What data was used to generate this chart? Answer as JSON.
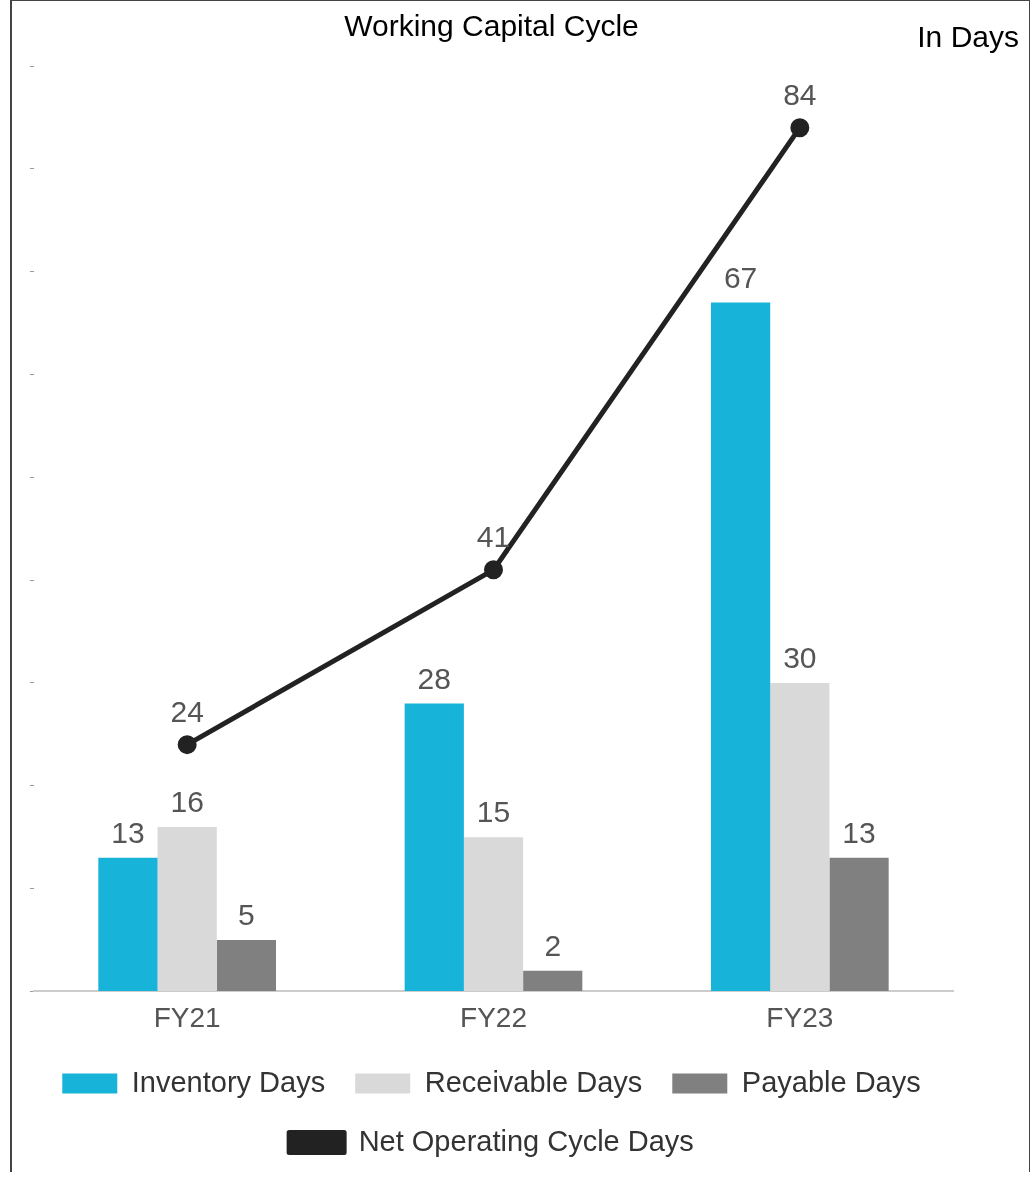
{
  "chart_data": {
    "type": "bar",
    "title": "Working Capital Cycle",
    "annotations": [
      "In Days"
    ],
    "categories": [
      "FY21",
      "FY22",
      "FY23"
    ],
    "series": [
      {
        "name": "Inventory Days",
        "color": "#17b3d8",
        "values": [
          13,
          28,
          67
        ]
      },
      {
        "name": "Receivable Days",
        "color": "#d9d9d9",
        "values": [
          16,
          15,
          30
        ]
      },
      {
        "name": "Payable Days",
        "color": "#808080",
        "values": [
          5,
          2,
          13
        ]
      },
      {
        "name": "Net Operating Cycle Days",
        "type": "line",
        "color": "#222222",
        "values": [
          24,
          41,
          84
        ]
      }
    ],
    "tick_labels": "x",
    "data_labels": true,
    "legend": "bottom",
    "marker": "circle",
    "grid": false
  }
}
